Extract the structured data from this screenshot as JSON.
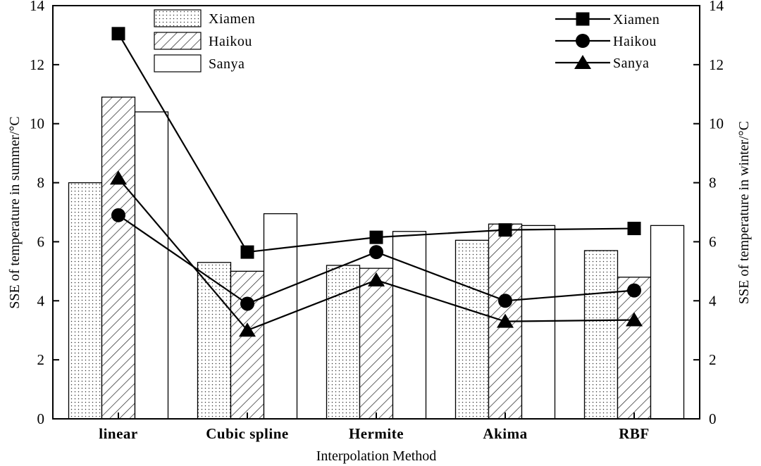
{
  "chart_data": {
    "type": "bar",
    "title": "",
    "xlabel": "Interpolation Method",
    "ylabel_left": "SSE of temperature in summer/°C",
    "ylabel_right": "SSE of temperature in winter/°C",
    "categories": [
      "linear",
      "Cubic spline",
      "Hermite",
      "Akima",
      "RBF"
    ],
    "ylim_left": [
      0,
      14
    ],
    "ylim_right": [
      0,
      14
    ],
    "yticks": [
      0,
      2,
      4,
      6,
      8,
      10,
      12,
      14
    ],
    "grid": false,
    "bar_series": [
      {
        "name": "Xiamen",
        "values": [
          8.0,
          5.3,
          5.2,
          6.05,
          5.7
        ],
        "pattern": "dots"
      },
      {
        "name": "Haikou",
        "values": [
          10.9,
          5.0,
          5.1,
          6.6,
          4.8
        ],
        "pattern": "hatch"
      },
      {
        "name": "Sanya",
        "values": [
          10.4,
          6.95,
          6.35,
          6.55,
          6.55
        ],
        "pattern": "none"
      }
    ],
    "line_series": [
      {
        "name": "Xiamen",
        "values": [
          13.05,
          5.65,
          6.15,
          6.4,
          6.45
        ],
        "marker": "square"
      },
      {
        "name": "Haikou",
        "values": [
          6.9,
          3.9,
          5.65,
          4.0,
          4.35
        ],
        "marker": "circle"
      },
      {
        "name": "Sanya",
        "values": [
          8.15,
          3.0,
          4.7,
          3.3,
          3.35
        ],
        "marker": "triangle"
      }
    ],
    "legend_bars_position": "top-left",
    "legend_lines_position": "top-right"
  }
}
